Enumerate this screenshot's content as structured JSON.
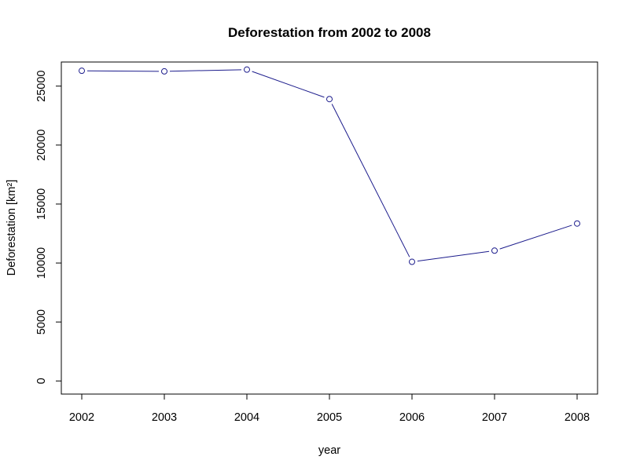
{
  "chart_data": {
    "type": "line",
    "title": "Deforestation from 2002 to 2008",
    "xlabel": "year",
    "ylabel": "Deforestation [km²]",
    "categories": [
      "2002",
      "2003",
      "2004",
      "2005",
      "2006",
      "2007",
      "2008"
    ],
    "x": [
      2002,
      2003,
      2004,
      2005,
      2006,
      2007,
      2008
    ],
    "series": [
      {
        "name": "Deforestation",
        "values": [
          26300,
          26250,
          26400,
          23900,
          10100,
          11050,
          13350
        ],
        "color": "#1c1c8c",
        "marker": "open-circle"
      }
    ],
    "xlim": [
      2001.75,
      2008.25
    ],
    "ylim": [
      -1100,
      27350
    ],
    "yticks": [
      0,
      5000,
      10000,
      15000,
      20000,
      25000
    ],
    "ytick_labels": [
      "0",
      "5000",
      "10000",
      "15000",
      "20000",
      "25000"
    ],
    "xticks": [
      2002,
      2003,
      2004,
      2005,
      2006,
      2007,
      2008
    ],
    "xtick_labels": [
      "2002",
      "2003",
      "2004",
      "2005",
      "2006",
      "2007",
      "2008"
    ],
    "grid": false,
    "legend": null
  }
}
